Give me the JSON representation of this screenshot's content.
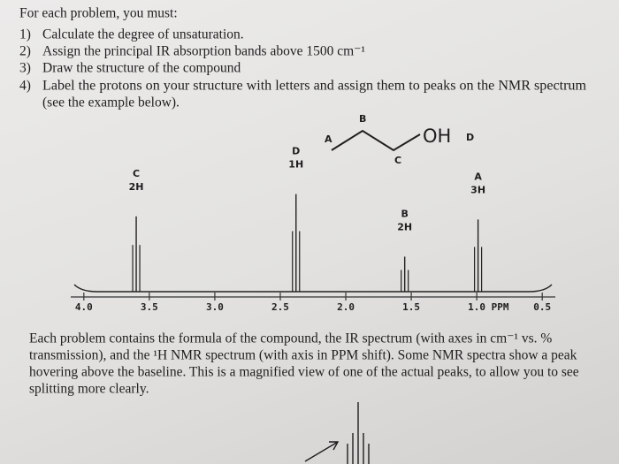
{
  "instructions": {
    "heading": "For each problem, you must:",
    "steps": [
      {
        "number": "1)",
        "text": "Calculate the degree of unsaturation."
      },
      {
        "number": "2)",
        "text": "Assign the principal IR absorption bands above 1500 cm⁻¹"
      },
      {
        "number": "3)",
        "text": "Draw the structure of the compound"
      },
      {
        "number": "4)",
        "text": "Label the protons on your structure with letters and assign them to peaks on the NMR spectrum",
        "continuation": "(see the example below)."
      }
    ]
  },
  "structure": {
    "labels": [
      "A",
      "B",
      "C"
    ],
    "group": "OH",
    "group_label": "D"
  },
  "spectrum": {
    "xlim": [
      4.1,
      0.4
    ],
    "ylim": [
      0,
      100
    ],
    "xticks": [
      {
        "value": 4,
        "label": "4.0"
      },
      3.5,
      {
        "value": 3,
        "label": "3.0"
      },
      2.5,
      {
        "value": 2,
        "label": "2.0"
      },
      1.5,
      {
        "value": 1,
        "label": "1.0 PPM"
      },
      0.5
    ],
    "peaks": [
      {
        "letter": "C",
        "count": "2H",
        "shift": 3.6,
        "height": 71
      },
      {
        "letter": "D",
        "count": "1H",
        "shift": 2.38,
        "height": 92
      },
      {
        "letter": "B",
        "count": "2H",
        "shift": 1.55,
        "height": 33
      },
      {
        "letter": "A",
        "count": "3H",
        "shift": 0.99,
        "height": 68
      }
    ]
  },
  "paragraph": [
    "Each problem contains the formula of the compound, the IR spectrum (with axes in cm⁻¹ vs. %",
    "transmission), and the ¹H NMR spectrum (with axis in PPM shift). Some NMR spectra show a peak",
    "hovering above the baseline. This is a magnified view of one of the actual peaks, to allow you to see",
    "splitting more clearly."
  ]
}
